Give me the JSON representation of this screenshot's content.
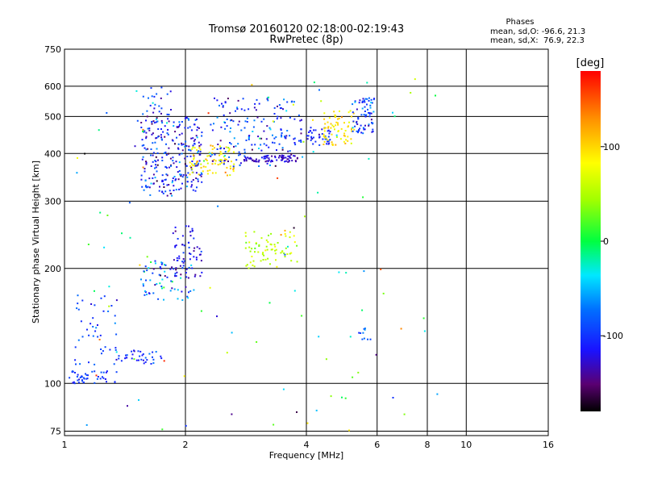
{
  "chart_data": {
    "type": "scatter",
    "title": "Tromsø 20160120 02:18:00-02:19:43",
    "subtitle": "RwPretec (8p)",
    "xlabel": "Frequency [MHz]",
    "ylabel": "Stationary phase Virtual Height [km]",
    "x_scale": "log",
    "y_scale": "log",
    "xlim": [
      1,
      16
    ],
    "ylim": [
      73,
      750
    ],
    "x_ticks": [
      1,
      2,
      4,
      6,
      8,
      10,
      16
    ],
    "x_tick_labels": [
      "1",
      "2",
      "4",
      "6",
      "8",
      "10",
      "16"
    ],
    "y_ticks": [
      75,
      100,
      200,
      300,
      400,
      500,
      600,
      750
    ],
    "y_tick_labels": [
      "75",
      "100",
      "200",
      "300",
      "400",
      "500",
      "600",
      "750"
    ],
    "grid": true,
    "stats": {
      "heading": "Phases",
      "line_o": "mean, sd,O: -96.6, 21.3",
      "line_x": "mean, sd,X:  76.9, 22.3"
    },
    "colorbar": {
      "label": "[deg]",
      "range": [
        -180,
        180
      ],
      "ticks": [
        -100,
        0,
        100
      ],
      "tick_labels": [
        "-100",
        "0",
        "100"
      ]
    },
    "clusters": [
      {
        "f": [
          1.01,
          1.35
        ],
        "h": [
          100,
          108
        ],
        "n": 45,
        "phase": -100,
        "sd": 15
      },
      {
        "f": [
          1.05,
          1.35
        ],
        "h": [
          110,
          170
        ],
        "n": 45,
        "phase": -90,
        "sd": 25
      },
      {
        "f": [
          1.35,
          1.75
        ],
        "h": [
          112,
          122
        ],
        "n": 35,
        "phase": -95,
        "sd": 20
      },
      {
        "f": [
          1.55,
          2.1
        ],
        "h": [
          165,
          210
        ],
        "n": 70,
        "phase": -80,
        "sd": 60
      },
      {
        "f": [
          1.85,
          2.2
        ],
        "h": [
          190,
          260
        ],
        "n": 60,
        "phase": -120,
        "sd": 25
      },
      {
        "f": [
          1.55,
          2.2
        ],
        "h": [
          310,
          500
        ],
        "n": 260,
        "phase": -110,
        "sd": 40
      },
      {
        "f": [
          1.5,
          1.85
        ],
        "h": [
          480,
          600
        ],
        "n": 30,
        "phase": -90,
        "sd": 45
      },
      {
        "f": [
          2.05,
          2.7
        ],
        "h": [
          350,
          420
        ],
        "n": 80,
        "phase": 90,
        "sd": 25
      },
      {
        "f": [
          2.3,
          3.9
        ],
        "h": [
          370,
          560
        ],
        "n": 180,
        "phase": -100,
        "sd": 40
      },
      {
        "f": [
          2.8,
          3.9
        ],
        "h": [
          380,
          395
        ],
        "n": 70,
        "phase": -130,
        "sd": 15
      },
      {
        "f": [
          2.8,
          3.8
        ],
        "h": [
          200,
          250
        ],
        "n": 70,
        "phase": 55,
        "sd": 20
      },
      {
        "f": [
          4.0,
          4.6
        ],
        "h": [
          420,
          470
        ],
        "n": 40,
        "phase": -110,
        "sd": 20
      },
      {
        "f": [
          4.4,
          5.3
        ],
        "h": [
          420,
          520
        ],
        "n": 70,
        "phase": 90,
        "sd": 20
      },
      {
        "f": [
          5.2,
          5.9
        ],
        "h": [
          450,
          560
        ],
        "n": 70,
        "phase": -100,
        "sd": 30
      },
      {
        "f": [
          5.4,
          5.8
        ],
        "h": [
          130,
          140
        ],
        "n": 10,
        "phase": -90,
        "sd": 20
      },
      {
        "f": [
          1.05,
          8.5
        ],
        "h": [
          75,
          640
        ],
        "n": 110,
        "phase": 0,
        "sd": 110
      }
    ]
  }
}
